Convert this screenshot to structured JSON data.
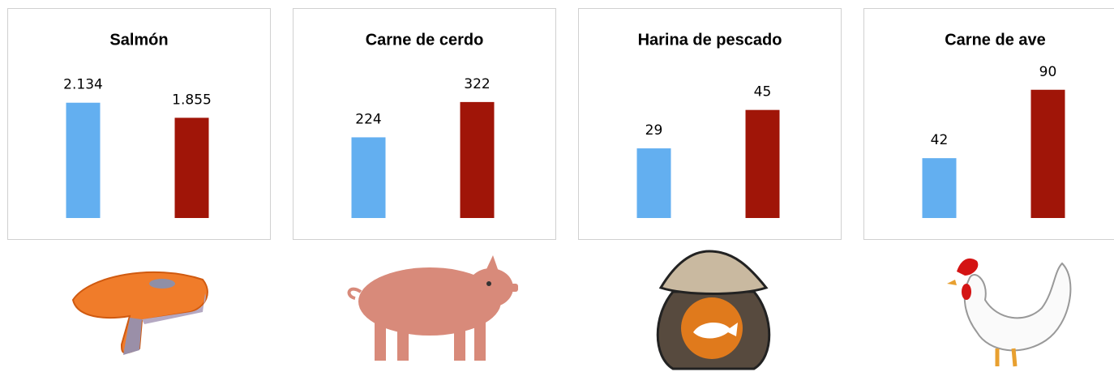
{
  "chart_data": [
    {
      "type": "bar",
      "title": "Salmón",
      "categories": [
        null,
        null
      ],
      "values": [
        2134,
        1855
      ],
      "value_labels": [
        "2.134",
        "1.855"
      ],
      "colors": [
        "#63aff0",
        "#a01508"
      ],
      "ylim": [
        0,
        2400
      ]
    },
    {
      "type": "bar",
      "title": "Carne de cerdo",
      "categories": [
        null,
        null
      ],
      "values": [
        224,
        322
      ],
      "colors": [
        "#63aff0",
        "#a01508"
      ],
      "ylim": [
        0,
        360
      ]
    },
    {
      "type": "bar",
      "title": "Harina de pescado",
      "categories": [
        null,
        null
      ],
      "values": [
        29,
        45
      ],
      "colors": [
        "#63aff0",
        "#a01508"
      ],
      "ylim": [
        0,
        54
      ]
    },
    {
      "type": "bar",
      "title": "Carne de ave",
      "categories": [
        null,
        null
      ],
      "values": [
        42,
        90
      ],
      "colors": [
        "#63aff0",
        "#a01508"
      ],
      "ylim": [
        0,
        91
      ]
    }
  ]
}
